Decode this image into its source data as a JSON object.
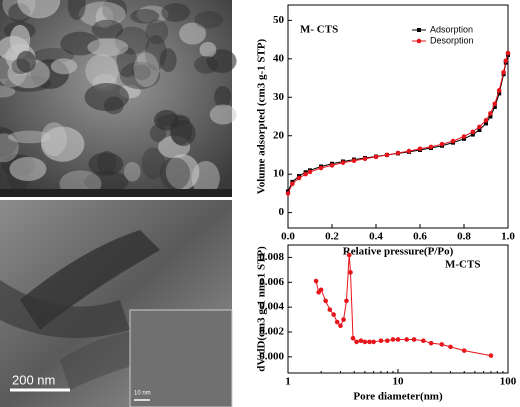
{
  "images": [
    {
      "kind": "SEM"
    },
    {
      "kind": "TEM",
      "scale_bar": "200 nm",
      "inset_scale_bar": "10 nm"
    }
  ],
  "chart_data": [
    {
      "type": "line",
      "annotation": "M- CTS",
      "xlabel": "Relative pressure(P/Po)",
      "ylabel": "Volume adsorpted (cm3 g-1 STP)",
      "xlim": [
        0,
        1.0
      ],
      "xticks": [
        {
          "value": 0,
          "label": "0.0"
        },
        0.2,
        0.4,
        0.6,
        0.8,
        {
          "value": 1,
          "label": "1.0"
        }
      ],
      "ylim": [
        -4,
        54
      ],
      "yticks": [
        0,
        10,
        20,
        30,
        40,
        50
      ],
      "legend": "upper right",
      "series": [
        {
          "name": "Adsorption",
          "color": "#000000",
          "marker": "square",
          "x": [
            0,
            0.02,
            0.05,
            0.08,
            0.1,
            0.15,
            0.2,
            0.25,
            0.3,
            0.35,
            0.4,
            0.45,
            0.5,
            0.55,
            0.6,
            0.65,
            0.7,
            0.75,
            0.8,
            0.84,
            0.87,
            0.9,
            0.92,
            0.94,
            0.96,
            0.98,
            0.99,
            1.0
          ],
          "values": [
            5.5,
            8,
            9.5,
            10.5,
            11,
            12,
            12.7,
            13.3,
            13.8,
            14.2,
            14.6,
            15,
            15.4,
            15.8,
            16.3,
            16.8,
            17.4,
            18.2,
            19.2,
            20.3,
            21.5,
            23.2,
            25,
            27.5,
            31,
            36,
            39,
            41
          ]
        },
        {
          "name": "Desorption",
          "color": "#e8141c",
          "marker": "circle",
          "x": [
            0,
            0.02,
            0.05,
            0.08,
            0.1,
            0.15,
            0.2,
            0.25,
            0.3,
            0.35,
            0.4,
            0.45,
            0.5,
            0.55,
            0.6,
            0.65,
            0.7,
            0.75,
            0.8,
            0.84,
            0.87,
            0.9,
            0.92,
            0.94,
            0.96,
            0.98,
            0.99,
            1.0
          ],
          "values": [
            5,
            7.5,
            9,
            10,
            10.6,
            11.6,
            12.3,
            13,
            13.5,
            14,
            14.5,
            15,
            15.5,
            16,
            16.6,
            17.1,
            17.8,
            18.6,
            19.8,
            21,
            22.3,
            24,
            25.8,
            28.3,
            31.8,
            36.5,
            39.5,
            41.5
          ]
        }
      ]
    },
    {
      "type": "line",
      "annotation": "M-CTS",
      "xlabel": "Pore diameter(nm)",
      "ylabel": "dV/dD(cm3 g-1 nm-1 STP)",
      "xscale": "log",
      "xlim": [
        1,
        100
      ],
      "xticks": [
        1,
        10,
        100
      ],
      "ylim": [
        -0.0013,
        0.009
      ],
      "yticks": [
        {
          "value": 0,
          "label": "0.000"
        },
        {
          "value": 0.002,
          "label": "0.002"
        },
        {
          "value": 0.004,
          "label": "0.004"
        },
        {
          "value": 0.006,
          "label": "0.006"
        },
        {
          "value": 0.008,
          "label": "0.008"
        }
      ],
      "series": [
        {
          "name": null,
          "color": "#e8141c",
          "marker": "circle",
          "x": [
            1.8,
            1.9,
            2.0,
            2.2,
            2.4,
            2.6,
            2.8,
            3.0,
            3.2,
            3.4,
            3.6,
            3.7,
            3.9,
            4.2,
            4.6,
            5,
            5.5,
            6,
            7,
            8,
            9,
            10,
            12,
            14,
            17,
            20,
            25,
            30,
            40,
            70
          ],
          "values": [
            0.0061,
            0.0052,
            0.0054,
            0.0045,
            0.0038,
            0.0034,
            0.0028,
            0.0025,
            0.003,
            0.0045,
            0.0082,
            0.0068,
            0.0015,
            0.0012,
            0.0013,
            0.0012,
            0.0012,
            0.0012,
            0.0013,
            0.0013,
            0.0014,
            0.0014,
            0.0014,
            0.0014,
            0.0013,
            0.0011,
            0.001,
            0.0008,
            0.0005,
            0.0001
          ]
        }
      ]
    }
  ]
}
